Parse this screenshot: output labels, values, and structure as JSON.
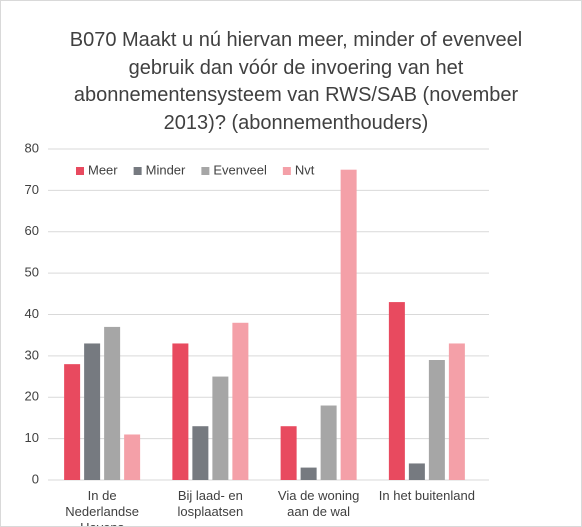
{
  "chart_data": {
    "type": "bar",
    "title": "B070 Maakt u nú hiervan meer, minder of evenveel gebruik dan vóór de invoering van het abonnementensysteem  van RWS/SAB (november 2013)? (abonnementhouders)",
    "categories": [
      "In de Nederlandse Havens",
      "Bij laad- en losplaatsen",
      "Via de woning aan de wal",
      "In het buitenland"
    ],
    "series": [
      {
        "name": "Meer",
        "color": "#e84a5f",
        "values": [
          28,
          33,
          13,
          43
        ]
      },
      {
        "name": "Minder",
        "color": "#767a80",
        "values": [
          33,
          13,
          3,
          4
        ]
      },
      {
        "name": "Evenveel",
        "color": "#a6a6a6",
        "values": [
          37,
          25,
          18,
          29
        ]
      },
      {
        "name": "Nvt",
        "color": "#f4a0a8",
        "values": [
          11,
          38,
          75,
          33
        ]
      }
    ],
    "ylim": [
      0,
      80
    ],
    "yticks": [
      0,
      10,
      20,
      30,
      40,
      50,
      60,
      70,
      80
    ],
    "grid": true,
    "legend": "top-left"
  }
}
